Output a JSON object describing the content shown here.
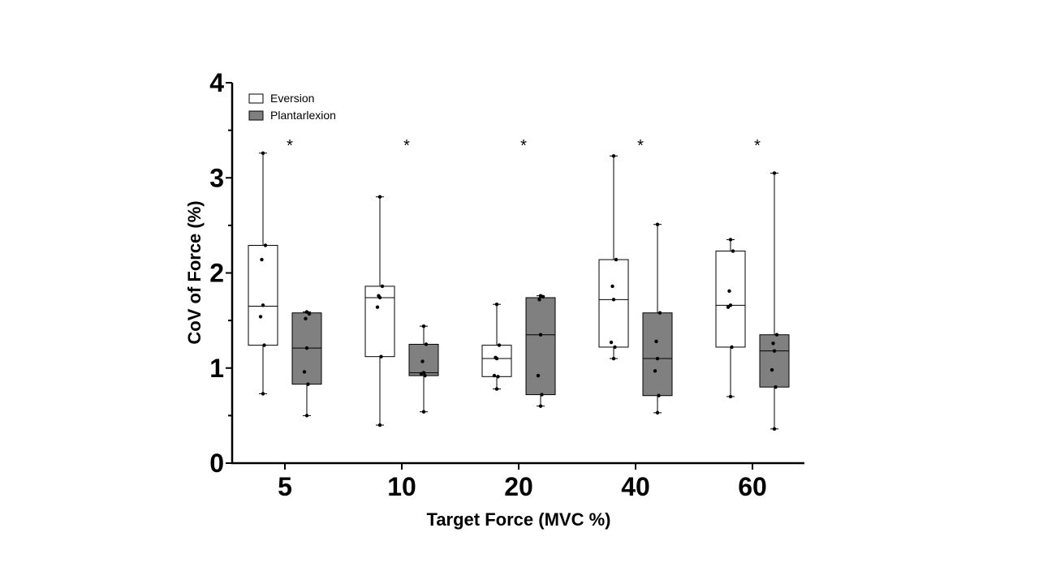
{
  "chart_data": {
    "type": "box",
    "title": "",
    "xlabel": "Target  Force (MVC %)",
    "ylabel": "CoV of Force (%)",
    "ylim": [
      0,
      4
    ],
    "yticks": [
      "0",
      "1",
      "2",
      "3",
      "4"
    ],
    "categories": [
      "5",
      "10",
      "20",
      "40",
      "60"
    ],
    "legend_position": "top-left",
    "significance_marker": "*",
    "significance": [
      true,
      true,
      true,
      true,
      true
    ],
    "series": [
      {
        "name": "Eversion",
        "color": "#ffffff",
        "boxes": [
          {
            "min": 0.73,
            "q1": 1.24,
            "median": 1.65,
            "q3": 2.29,
            "max": 3.26,
            "points": [
              0.73,
              1.24,
              1.54,
              1.66,
              2.14,
              2.29,
              3.26
            ]
          },
          {
            "min": 0.4,
            "q1": 1.12,
            "median": 1.74,
            "q3": 1.86,
            "max": 2.8,
            "points": [
              0.4,
              1.12,
              1.64,
              1.74,
              1.76,
              1.86,
              2.8
            ]
          },
          {
            "min": 0.78,
            "q1": 0.91,
            "median": 1.1,
            "q3": 1.24,
            "max": 1.67,
            "points": [
              0.78,
              0.91,
              0.92,
              1.1,
              1.11,
              1.24,
              1.67
            ]
          },
          {
            "min": 1.1,
            "q1": 1.22,
            "median": 1.72,
            "q3": 2.14,
            "max": 3.23,
            "points": [
              1.1,
              1.22,
              1.27,
              1.72,
              1.86,
              2.14,
              3.23
            ]
          },
          {
            "min": 0.7,
            "q1": 1.22,
            "median": 1.66,
            "q3": 2.23,
            "max": 2.35,
            "points": [
              0.7,
              1.22,
              1.64,
              1.66,
              1.81,
              2.23,
              2.35
            ]
          }
        ]
      },
      {
        "name": "Plantarlexion",
        "color": "#808080",
        "boxes": [
          {
            "min": 0.5,
            "q1": 0.83,
            "median": 1.21,
            "q3": 1.58,
            "max": 1.59,
            "points": [
              0.5,
              0.83,
              0.96,
              1.21,
              1.52,
              1.57,
              1.59
            ]
          },
          {
            "min": 0.54,
            "q1": 0.92,
            "median": 0.95,
            "q3": 1.25,
            "max": 1.44,
            "points": [
              0.54,
              0.92,
              0.94,
              0.95,
              1.07,
              1.25,
              1.44
            ]
          },
          {
            "min": 0.6,
            "q1": 0.72,
            "median": 1.35,
            "q3": 1.74,
            "max": 1.76,
            "points": [
              0.6,
              0.72,
              0.92,
              1.35,
              1.72,
              1.75,
              1.76
            ]
          },
          {
            "min": 0.53,
            "q1": 0.71,
            "median": 1.1,
            "q3": 1.58,
            "max": 2.51,
            "points": [
              0.53,
              0.71,
              0.97,
              1.1,
              1.28,
              1.58,
              2.51
            ]
          },
          {
            "min": 0.36,
            "q1": 0.8,
            "median": 1.18,
            "q3": 1.35,
            "max": 3.05,
            "points": [
              0.36,
              0.8,
              0.98,
              1.18,
              1.26,
              1.35,
              3.05
            ]
          }
        ]
      }
    ]
  }
}
